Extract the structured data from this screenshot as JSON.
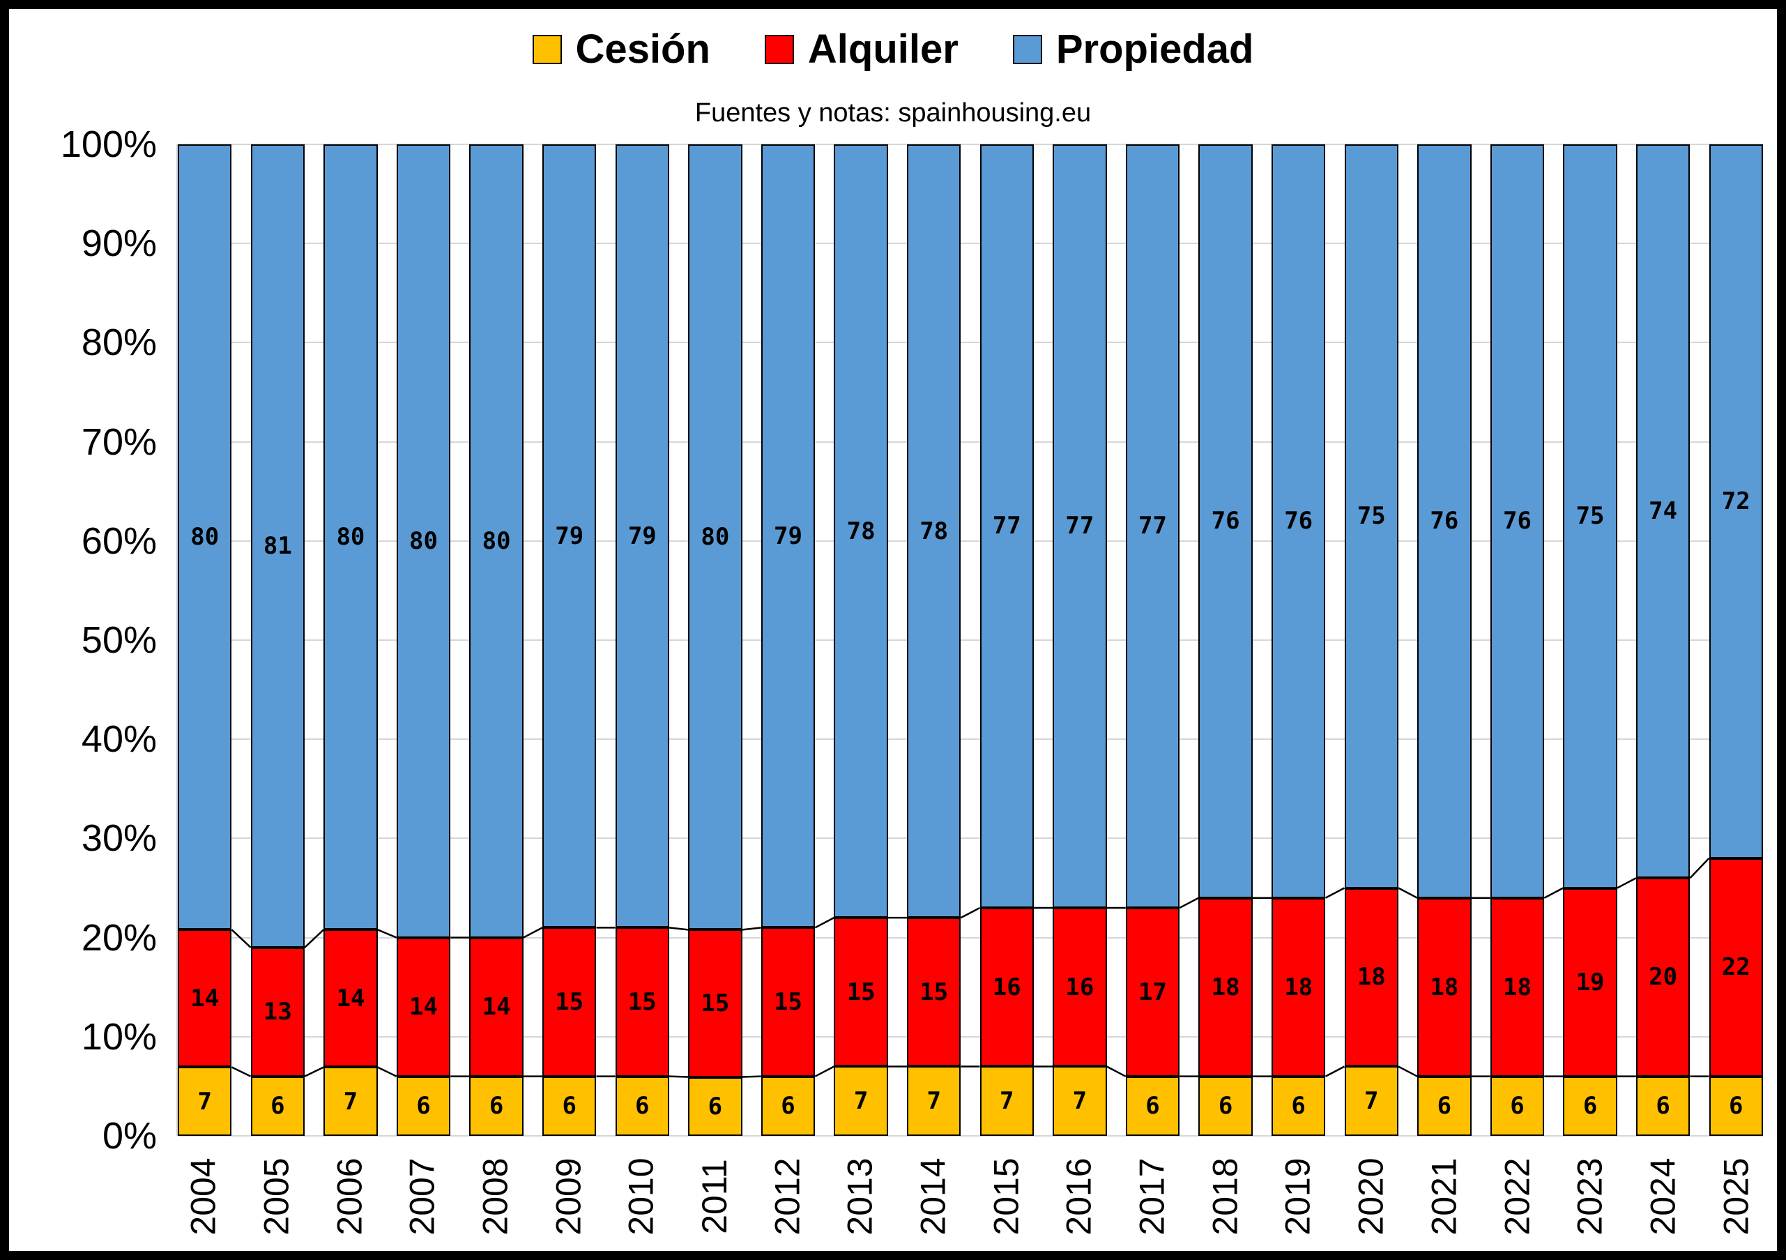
{
  "colors": {
    "frame": "#000000",
    "background": "#FFFFFF",
    "gridline": "#D6D6D6",
    "cesion": "#FFC000",
    "alquiler": "#FF0000",
    "propiedad": "#5B9BD5"
  },
  "chart_data": {
    "type": "bar",
    "stacked": true,
    "percent": true,
    "subtitle": "Fuentes y notas: spainhousing.eu",
    "legend_position": "top",
    "grid": true,
    "ylim": [
      0,
      100
    ],
    "y_ticks": [
      "100%",
      "90%",
      "80%",
      "70%",
      "60%",
      "50%",
      "40%",
      "30%",
      "20%",
      "10%",
      "0%"
    ],
    "categories": [
      "2004",
      "2005",
      "2006",
      "2007",
      "2008",
      "2009",
      "2010",
      "2011",
      "2012",
      "2013",
      "2014",
      "2015",
      "2016",
      "2017",
      "2018",
      "2019",
      "2020",
      "2021",
      "2022",
      "2023",
      "2024",
      "2025"
    ],
    "series": [
      {
        "name": "Cesión",
        "color": "#FFC000",
        "values": [
          7,
          6,
          7,
          6,
          6,
          6,
          6,
          6,
          6,
          7,
          7,
          7,
          7,
          6,
          6,
          6,
          7,
          6,
          6,
          6,
          6,
          6
        ]
      },
      {
        "name": "Alquiler",
        "color": "#FF0000",
        "values": [
          14,
          13,
          14,
          14,
          14,
          15,
          15,
          15,
          15,
          15,
          15,
          16,
          16,
          17,
          18,
          18,
          18,
          18,
          18,
          19,
          20,
          22
        ]
      },
      {
        "name": "Propiedad",
        "color": "#5B9BD5",
        "values": [
          80,
          81,
          80,
          80,
          80,
          79,
          79,
          80,
          79,
          78,
          78,
          77,
          77,
          77,
          76,
          76,
          75,
          76,
          76,
          75,
          74,
          72
        ]
      }
    ]
  }
}
